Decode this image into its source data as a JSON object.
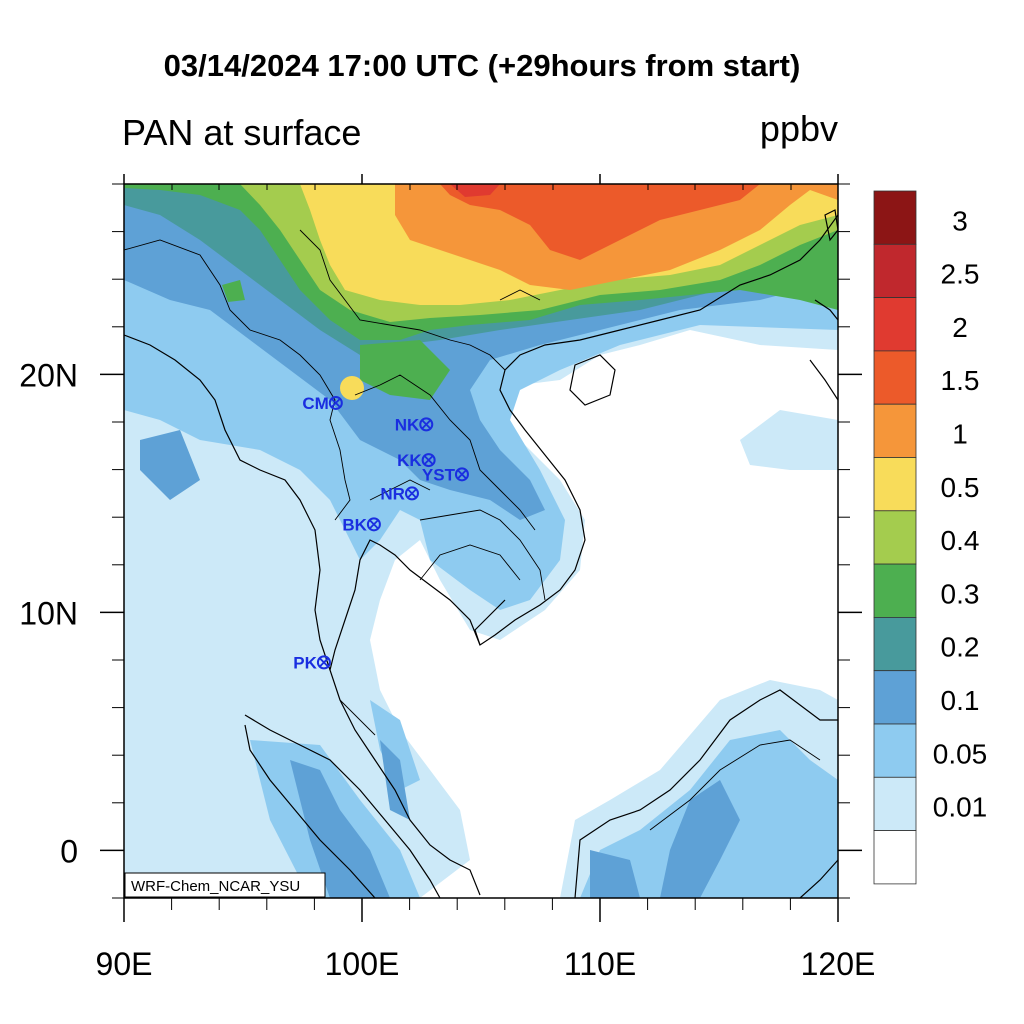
{
  "header": {
    "title": "03/14/2024 17:00 UTC (+29hours from start)",
    "subtitle": "PAN at surface",
    "units": "ppbv"
  },
  "map": {
    "lon_range": [
      90,
      120
    ],
    "lat_range": [
      -2,
      28
    ],
    "lon_ticks": [
      "90E",
      "100E",
      "110E",
      "120E"
    ],
    "lat_ticks": [
      "0",
      "10N",
      "20N"
    ],
    "credit": "WRF-Chem_NCAR_YSU",
    "stations": [
      {
        "label": "CM",
        "lon": 98.9,
        "lat": 18.8
      },
      {
        "label": "NK",
        "lon": 102.7,
        "lat": 17.9
      },
      {
        "label": "KK",
        "lon": 102.8,
        "lat": 16.4
      },
      {
        "label": "YST",
        "lon": 104.2,
        "lat": 15.8
      },
      {
        "label": "NR",
        "lon": 102.1,
        "lat": 15.0
      },
      {
        "label": "BK",
        "lon": 100.5,
        "lat": 13.7
      },
      {
        "label": "PK",
        "lon": 98.4,
        "lat": 7.9
      }
    ]
  },
  "colorbar": {
    "labels": [
      "3",
      "2.5",
      "2",
      "1.5",
      "1",
      "0.5",
      "0.4",
      "0.3",
      "0.2",
      "0.1",
      "0.05",
      "0.01"
    ],
    "colors": [
      "#8c1515",
      "#c0282d",
      "#e03a30",
      "#ec5a2a",
      "#f5963a",
      "#f8dc5a",
      "#a4cc4e",
      "#4daf50",
      "#489a9c",
      "#5ea1d6",
      "#8ecbf0",
      "#cce9f8",
      "#ffffff"
    ]
  }
}
